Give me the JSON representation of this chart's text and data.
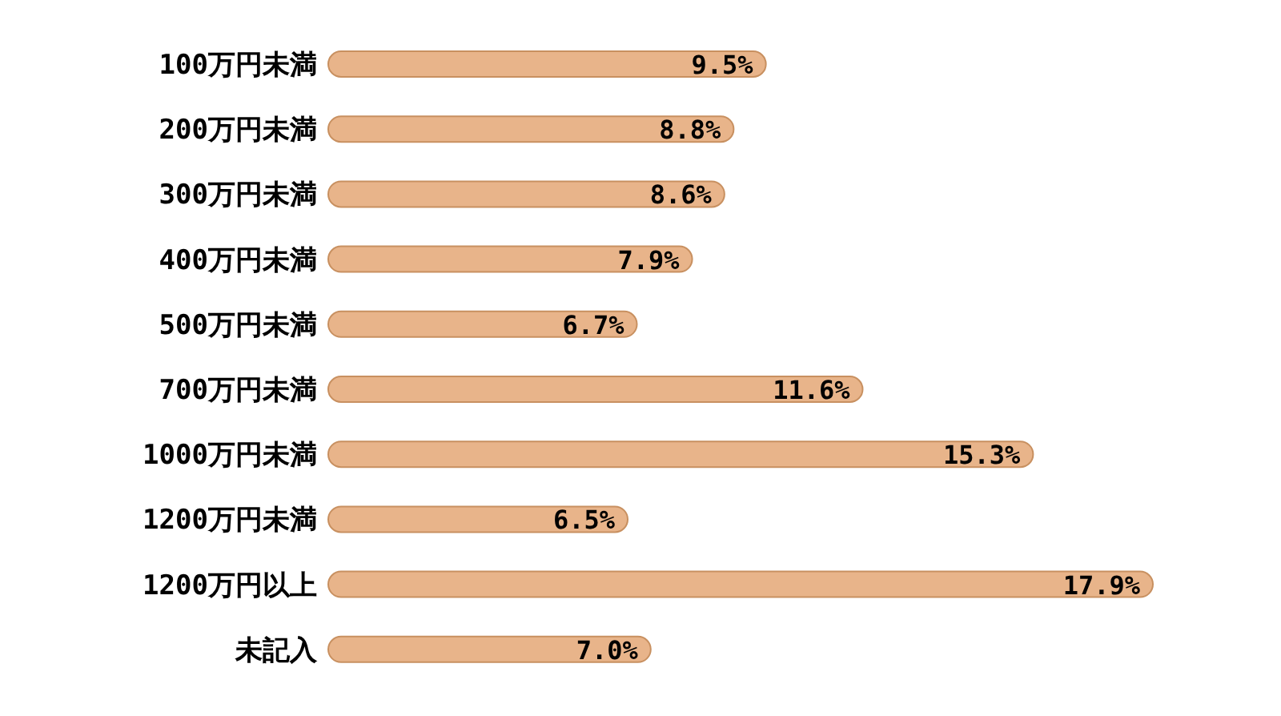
{
  "chart_data": {
    "type": "bar",
    "orientation": "horizontal",
    "color": "#e8b48a",
    "categories": [
      "100万円未満",
      "200万円未満",
      "300万円未満",
      "400万円未満",
      "500万円未満",
      "700万円未満",
      "1000万円未満",
      "1200万円未満",
      "1200万円以上",
      "未記入"
    ],
    "values": [
      9.5,
      8.8,
      8.6,
      7.9,
      6.7,
      11.6,
      15.3,
      6.5,
      17.9,
      7.0
    ],
    "value_labels": [
      "9.5%",
      "8.8%",
      "8.6%",
      "7.9%",
      "6.7%",
      "11.6%",
      "15.3%",
      "6.5%",
      "17.9%",
      "7.0%"
    ]
  }
}
